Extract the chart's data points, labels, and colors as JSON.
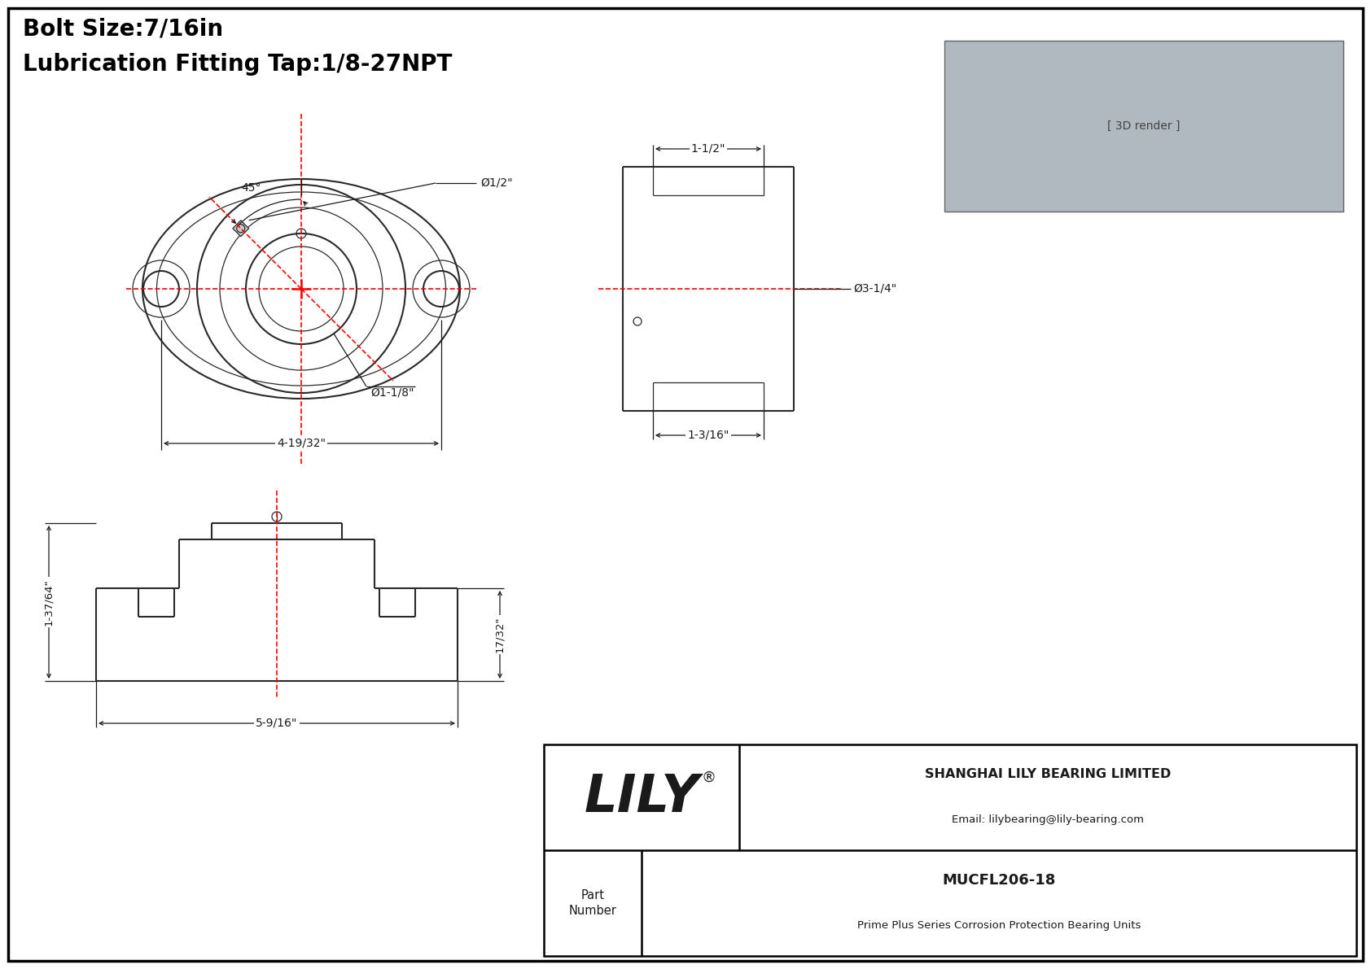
{
  "bg_color": "#ffffff",
  "border_color": "#000000",
  "line_color": "#2a2a2a",
  "dim_color": "#1a1a1a",
  "center_line_color": "#ff0000",
  "title_line1": "Bolt Size:7/16in",
  "title_line2": "Lubrication Fitting Tap:1/8-27NPT",
  "part_number": "MUCFL206-18",
  "part_desc": "Prime Plus Series Corrosion Protection Bearing Units",
  "company_name": "SHANGHAI LILY BEARING LIMITED",
  "company_email": "Email: lilybearing@lily-bearing.com",
  "logo_text": "LILY",
  "logo_reg": "®",
  "dims": {
    "front_bolt_spacing": "4-19/32\"",
    "front_bore": "Ø1-1/8\"",
    "front_grease": "Ø1/2\"",
    "front_angle": "45°",
    "side_width_top": "1-1/2\"",
    "side_od": "Ø3-1/4\"",
    "side_base_width": "1-3/16\"",
    "bottom_overall": "5-9/16\"",
    "bottom_height_left": "1-37/64\"",
    "bottom_height_right": "17/32\""
  }
}
